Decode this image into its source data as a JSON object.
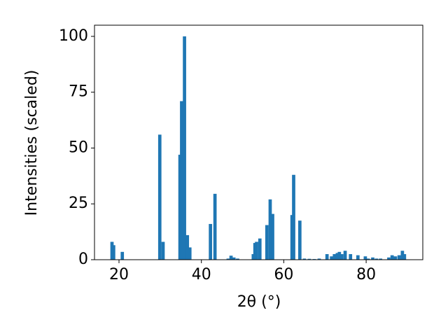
{
  "chart_data": {
    "type": "bar",
    "x_label": "2θ (°)",
    "y_label": "Intensities (scaled)",
    "color": "#1f77b4",
    "x": [
      18.3,
      18.7,
      20.8,
      29.9,
      30.7,
      34.8,
      35.2,
      35.9,
      36.6,
      37.2,
      42.2,
      43.3,
      46.5,
      47.2,
      47.9,
      48.8,
      52.6,
      53.0,
      53.4,
      54.2,
      55.9,
      56.7,
      57.3,
      62.0,
      62.4,
      63.9,
      65.0,
      66.2,
      67.4,
      68.6,
      70.5,
      71.6,
      72.3,
      73.0,
      73.5,
      74.1,
      74.9,
      76.2,
      78.0,
      79.8,
      80.5,
      81.6,
      82.5,
      83.5,
      85.5,
      86.3,
      87.1,
      88.0,
      88.8,
      89.3
    ],
    "values": [
      8,
      6.5,
      3.5,
      56,
      8,
      47,
      71,
      100,
      11,
      5.5,
      16,
      29.5,
      0.5,
      1.8,
      1,
      0.5,
      2.5,
      7.5,
      8,
      9.5,
      15.5,
      27,
      20.5,
      20,
      38,
      17.5,
      0.5,
      0.4,
      0.3,
      0.5,
      2.5,
      1.5,
      2.5,
      3,
      3.5,
      2.5,
      4,
      2.5,
      2,
      1.5,
      0.5,
      1,
      0.5,
      0.5,
      1,
      2,
      1.5,
      2,
      4,
      2.5
    ],
    "xlim": [
      14.05,
      93.75
    ],
    "ylim": [
      0,
      105
    ],
    "xticks": [
      20,
      40,
      60,
      80
    ],
    "yticks": [
      0,
      25,
      50,
      75,
      100
    ]
  }
}
